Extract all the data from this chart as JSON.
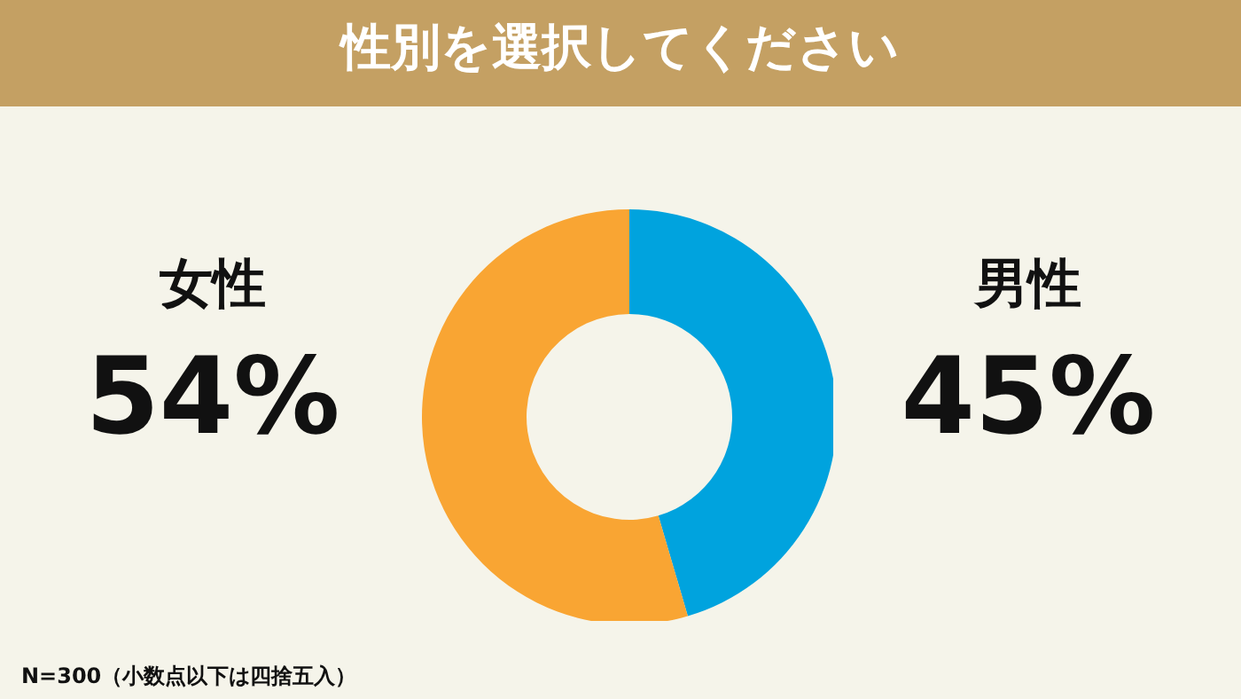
{
  "chart_data": {
    "type": "donut",
    "title": "性別を選択してください",
    "categories": [
      "男性",
      "女性"
    ],
    "values": [
      45,
      54
    ],
    "colors": [
      "#00a3de",
      "#f9a533"
    ],
    "value_labels": [
      "45%",
      "54%"
    ],
    "legend": false,
    "annotations": [
      "N=300（小数点以下は四捨五入）"
    ]
  }
}
